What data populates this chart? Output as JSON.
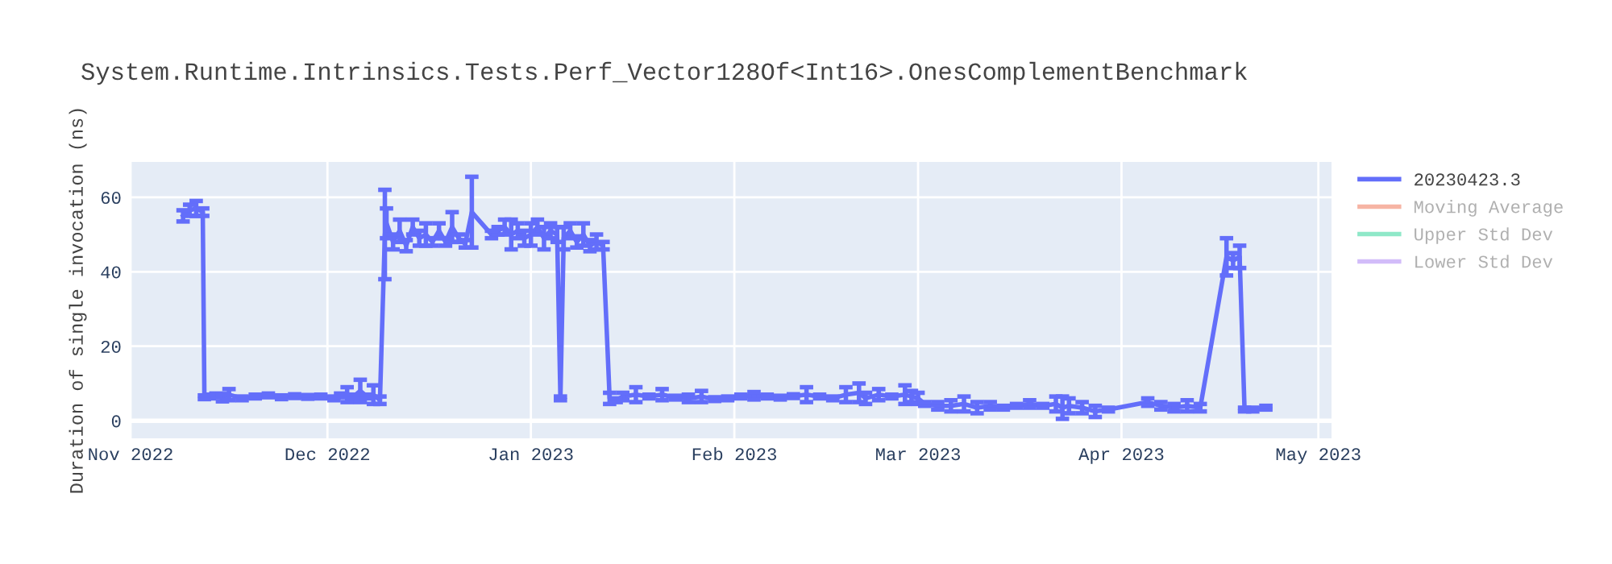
{
  "chart_data": {
    "type": "line",
    "title": "System.Runtime.Intrinsics.Tests.Perf_Vector128Of<Int16>.OnesComplementBenchmark",
    "ylabel": "Duration of single invocation (ns)",
    "x": [
      "2022-11-09",
      "2022-11-10",
      "2022-11-11",
      "2022-11-12",
      "2022-11-12T06:00",
      "2022-11-13",
      "2022-11-14",
      "2022-11-15",
      "2022-11-16",
      "2022-11-18",
      "2022-11-20",
      "2022-11-22",
      "2022-11-24",
      "2022-11-26",
      "2022-11-28",
      "2022-11-30",
      "2022-12-02",
      "2022-12-03",
      "2022-12-04",
      "2022-12-05",
      "2022-12-06",
      "2022-12-07",
      "2022-12-08",
      "2022-12-09",
      "2022-12-09T18:00",
      "2022-12-10",
      "2022-12-11",
      "2022-12-12",
      "2022-12-13",
      "2022-12-14",
      "2022-12-15",
      "2022-12-16",
      "2022-12-17",
      "2022-12-18",
      "2022-12-19",
      "2022-12-20",
      "2022-12-21",
      "2022-12-22",
      "2022-12-23",
      "2022-12-26",
      "2022-12-27",
      "2022-12-28",
      "2022-12-29",
      "2022-12-30",
      "2022-12-31",
      "2023-01-01",
      "2023-01-02",
      "2023-01-03",
      "2023-01-04",
      "2023-01-05",
      "2023-01-05T12:00",
      "2023-01-06",
      "2023-01-07",
      "2023-01-08",
      "2023-01-09",
      "2023-01-10",
      "2023-01-11",
      "2023-01-12",
      "2023-01-13",
      "2023-01-14",
      "2023-01-15",
      "2023-01-17",
      "2023-01-19",
      "2023-01-21",
      "2023-01-23",
      "2023-01-25",
      "2023-01-27",
      "2023-01-29",
      "2023-01-31",
      "2023-02-02",
      "2023-02-04",
      "2023-02-06",
      "2023-02-08",
      "2023-02-10",
      "2023-02-12",
      "2023-02-14",
      "2023-02-16",
      "2023-02-18",
      "2023-02-20",
      "2023-02-21",
      "2023-02-23",
      "2023-02-25",
      "2023-02-27",
      "2023-02-28",
      "2023-03-01",
      "2023-03-02",
      "2023-03-04",
      "2023-03-06",
      "2023-03-08",
      "2023-03-10",
      "2023-03-12",
      "2023-03-14",
      "2023-03-16",
      "2023-03-18",
      "2023-03-20",
      "2023-03-22",
      "2023-03-23",
      "2023-03-24",
      "2023-03-26",
      "2023-03-28",
      "2023-03-30",
      "2023-04-05",
      "2023-04-07",
      "2023-04-09",
      "2023-04-11",
      "2023-04-13",
      "2023-04-17",
      "2023-04-18",
      "2023-04-19",
      "2023-04-19T18:00",
      "2023-04-21",
      "2023-04-23"
    ],
    "series": [
      {
        "name": "20230423.3",
        "color": "#636efa",
        "values": [
          55,
          56.5,
          57,
          56,
          6.3,
          6.5,
          6.8,
          6.2,
          7,
          6,
          6.5,
          6.8,
          6.3,
          6.6,
          6.4,
          6.5,
          6,
          6.8,
          7,
          6.5,
          8,
          6.5,
          7,
          5.5,
          50,
          53,
          48,
          51,
          47,
          52,
          49,
          50,
          48,
          51,
          48,
          52,
          49,
          47.5,
          56,
          50,
          51,
          52,
          50,
          51,
          49,
          50,
          52,
          49,
          51,
          50,
          6,
          49,
          51,
          48,
          50,
          47,
          48,
          47,
          6,
          5.5,
          6.5,
          7,
          6.5,
          7,
          6.2,
          6,
          6.5,
          5.8,
          6,
          6.5,
          6.7,
          6.5,
          6.2,
          6.6,
          7,
          6.5,
          6,
          7,
          7.5,
          6,
          7,
          6.5,
          7,
          6.5,
          6,
          4.5,
          4,
          4,
          4.5,
          3.5,
          4,
          3.5,
          4,
          4.5,
          4,
          4.5,
          3.5,
          4,
          3.5,
          2.5,
          3,
          5,
          4,
          3.5,
          4,
          3.5,
          44,
          43,
          44,
          3,
          3,
          3.5
        ],
        "errors": [
          1.5,
          1.5,
          2,
          1,
          0.5,
          0.5,
          0.5,
          1,
          1.5,
          0.5,
          0.5,
          0.5,
          0.5,
          0.5,
          0.5,
          0.5,
          0.5,
          0.5,
          2,
          0.5,
          3,
          0.5,
          2.5,
          1,
          12,
          4,
          2,
          3,
          1.5,
          2,
          2,
          3,
          1,
          2,
          1,
          4,
          1,
          1,
          9.5,
          1,
          1,
          2,
          4,
          2,
          2,
          3,
          2,
          3,
          2,
          2,
          0.5,
          3,
          2,
          1.5,
          3,
          1.5,
          2,
          1,
          1.5,
          0.5,
          1,
          2,
          0.5,
          1.5,
          0.5,
          1,
          1.5,
          0.5,
          0.5,
          0.5,
          1,
          0.5,
          0.5,
          0.5,
          2,
          0.5,
          0.5,
          2,
          2.5,
          1.5,
          1.5,
          0.5,
          2.5,
          1.5,
          1.5,
          0.5,
          1,
          1.5,
          2,
          1.5,
          1,
          0.5,
          0.5,
          1,
          0.5,
          2,
          3,
          2,
          1.5,
          1.5,
          0.5,
          1,
          1,
          1,
          1.5,
          1,
          5,
          2,
          3,
          0.5,
          0.5,
          0.5
        ]
      },
      {
        "name": "Moving Average",
        "color": "#f6b4a4",
        "values": [
          null,
          null,
          null,
          null,
          null,
          null,
          null,
          null,
          null,
          null,
          null,
          null,
          null,
          null,
          null,
          null,
          null,
          null,
          null,
          null,
          null,
          null,
          null,
          null,
          null,
          null,
          null,
          null,
          null,
          null,
          null,
          null,
          null,
          null,
          null,
          null,
          null,
          null,
          null,
          null,
          null,
          null,
          null,
          null,
          null,
          null,
          null,
          null,
          null,
          null,
          null,
          null,
          null,
          null,
          null,
          null,
          null,
          null,
          null,
          null,
          null,
          null,
          null,
          null,
          null,
          null,
          null,
          null,
          null,
          null,
          null,
          null,
          null,
          null,
          null,
          null,
          null,
          null,
          null,
          null,
          null,
          null,
          null,
          null,
          null,
          null,
          null,
          null,
          null,
          null,
          null,
          null,
          null,
          null,
          null,
          null,
          null,
          null,
          null,
          null,
          null,
          null,
          null,
          null,
          null,
          null,
          null,
          null,
          null,
          null,
          null,
          null
        ]
      },
      {
        "name": "Upper Std Dev",
        "color": "#8fe8c8",
        "values": [
          null,
          null,
          null,
          null,
          null,
          null,
          null,
          null,
          null,
          null,
          null,
          null,
          null,
          null,
          null,
          null,
          null,
          null,
          null,
          null,
          null,
          null,
          null,
          null,
          null,
          null,
          null,
          null,
          null,
          null,
          null,
          null,
          null,
          null,
          null,
          null,
          null,
          null,
          null,
          null,
          null,
          null,
          null,
          null,
          null,
          null,
          null,
          null,
          null,
          null,
          null,
          null,
          null,
          null,
          null,
          null,
          null,
          null,
          null,
          null,
          null,
          null,
          null,
          null,
          null,
          null,
          null,
          null,
          null,
          null,
          null,
          null,
          null,
          null,
          null,
          null,
          null,
          null,
          null,
          null,
          null,
          null,
          null,
          null,
          null,
          null,
          null,
          null,
          null,
          null,
          null,
          null,
          null,
          null,
          null,
          null,
          null,
          null,
          null,
          null,
          null,
          null,
          null,
          null,
          null,
          null,
          null,
          null,
          null,
          null,
          null,
          null
        ]
      },
      {
        "name": "Lower Std Dev",
        "color": "#d2bcf9",
        "values": [
          null,
          null,
          null,
          null,
          null,
          null,
          null,
          null,
          null,
          null,
          null,
          null,
          null,
          null,
          null,
          null,
          null,
          null,
          null,
          null,
          null,
          null,
          null,
          null,
          null,
          null,
          null,
          null,
          null,
          null,
          null,
          null,
          null,
          null,
          null,
          null,
          null,
          null,
          null,
          null,
          null,
          null,
          null,
          null,
          null,
          null,
          null,
          null,
          null,
          null,
          null,
          null,
          null,
          null,
          null,
          null,
          null,
          null,
          null,
          null,
          null,
          null,
          null,
          null,
          null,
          null,
          null,
          null,
          null,
          null,
          null,
          null,
          null,
          null,
          null,
          null,
          null,
          null,
          null,
          null,
          null,
          null,
          null,
          null,
          null,
          null,
          null,
          null,
          null,
          null,
          null,
          null,
          null,
          null,
          null,
          null,
          null,
          null,
          null,
          null,
          null,
          null,
          null,
          null,
          null,
          null,
          null,
          null,
          null,
          null,
          null,
          null
        ]
      }
    ],
    "xlim": [
      "2022-11-01",
      "2023-05-03"
    ],
    "xticks": [
      {
        "value": "2022-11-01",
        "label": "Nov 2022"
      },
      {
        "value": "2022-12-01",
        "label": "Dec 2022"
      },
      {
        "value": "2023-01-01",
        "label": "Jan 2023"
      },
      {
        "value": "2023-02-01",
        "label": "Feb 2023"
      },
      {
        "value": "2023-03-01",
        "label": "Mar 2023"
      },
      {
        "value": "2023-04-01",
        "label": "Apr 2023"
      },
      {
        "value": "2023-05-01",
        "label": "May 2023"
      }
    ],
    "ylim": [
      -4.7,
      69.5
    ],
    "yticks": [
      0,
      20,
      40,
      60
    ],
    "grid": true,
    "legend": "top right",
    "marker": "none",
    "line_style": "solid"
  }
}
